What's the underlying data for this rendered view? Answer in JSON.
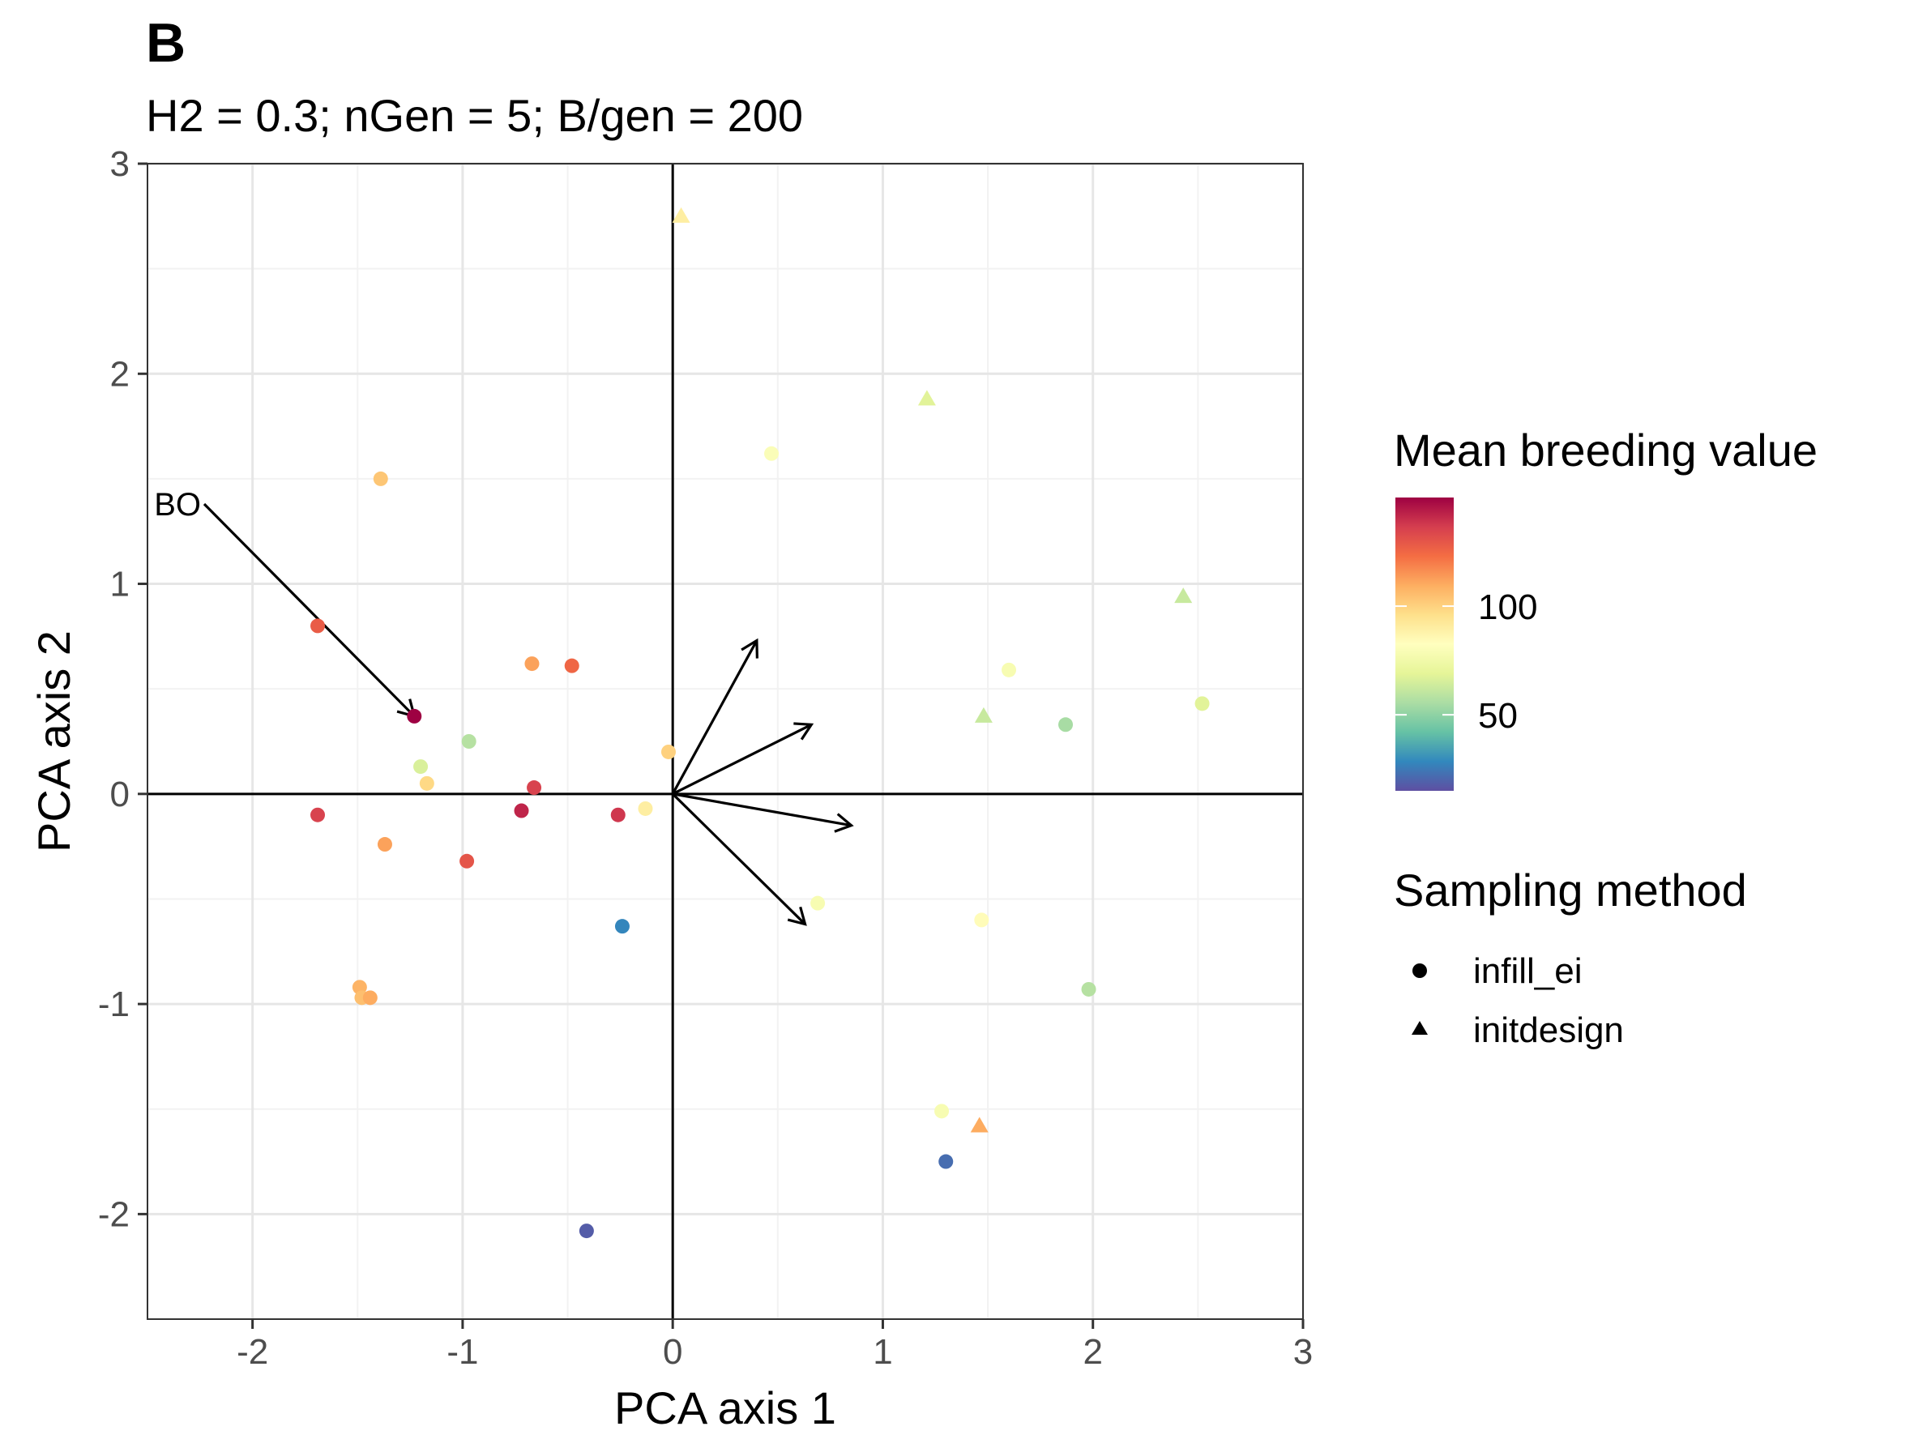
{
  "panel_label": "B",
  "subtitle": "H2 = 0.3; nGen = 5; B/gen = 200",
  "chart_data": {
    "type": "scatter",
    "xlabel": "PCA axis 1",
    "ylabel": "PCA axis 2",
    "xlim": [
      -2.5,
      3
    ],
    "ylim": [
      -2.5,
      3
    ],
    "x_ticks": [
      {
        "value": -2,
        "label": "-2"
      },
      {
        "value": -1,
        "label": "-1"
      },
      {
        "value": 0,
        "label": "0"
      },
      {
        "value": 1,
        "label": "1"
      },
      {
        "value": 2,
        "label": "2"
      },
      {
        "value": 3,
        "label": "3"
      }
    ],
    "y_ticks": [
      {
        "value": -2,
        "label": "-2"
      },
      {
        "value": -1,
        "label": "-1"
      },
      {
        "value": 0,
        "label": "0"
      },
      {
        "value": 1,
        "label": "1"
      },
      {
        "value": 2,
        "label": "2"
      },
      {
        "value": 3,
        "label": "3"
      }
    ],
    "grid": true,
    "reference_lines": {
      "x": 0,
      "y": 0
    },
    "points": [
      {
        "x": 0.04,
        "y": 2.75,
        "value": 90,
        "method": "initdesign"
      },
      {
        "x": 1.21,
        "y": 1.88,
        "value": 68,
        "method": "initdesign"
      },
      {
        "x": 2.43,
        "y": 0.94,
        "value": 62,
        "method": "initdesign"
      },
      {
        "x": 1.48,
        "y": 0.37,
        "value": 62,
        "method": "initdesign"
      },
      {
        "x": 1.46,
        "y": -1.58,
        "value": 110,
        "method": "initdesign"
      },
      {
        "x": -1.39,
        "y": 1.5,
        "value": 103,
        "method": "infill_ei"
      },
      {
        "x": 0.47,
        "y": 1.62,
        "value": 80,
        "method": "infill_ei"
      },
      {
        "x": -1.69,
        "y": 0.8,
        "value": 128,
        "method": "infill_ei"
      },
      {
        "x": -0.67,
        "y": 0.62,
        "value": 112,
        "method": "infill_ei"
      },
      {
        "x": -0.48,
        "y": 0.61,
        "value": 125,
        "method": "infill_ei"
      },
      {
        "x": -1.23,
        "y": 0.37,
        "value": 150,
        "method": "infill_ei"
      },
      {
        "x": -0.97,
        "y": 0.25,
        "value": 58,
        "method": "infill_ei"
      },
      {
        "x": -1.2,
        "y": 0.13,
        "value": 66,
        "method": "infill_ei"
      },
      {
        "x": -1.17,
        "y": 0.05,
        "value": 98,
        "method": "infill_ei"
      },
      {
        "x": -0.66,
        "y": 0.03,
        "value": 135,
        "method": "infill_ei"
      },
      {
        "x": -0.02,
        "y": 0.2,
        "value": 100,
        "method": "infill_ei"
      },
      {
        "x": -1.69,
        "y": -0.1,
        "value": 135,
        "method": "infill_ei"
      },
      {
        "x": -0.72,
        "y": -0.08,
        "value": 142,
        "method": "infill_ei"
      },
      {
        "x": -0.26,
        "y": -0.1,
        "value": 138,
        "method": "infill_ei"
      },
      {
        "x": -0.13,
        "y": -0.07,
        "value": 90,
        "method": "infill_ei"
      },
      {
        "x": -1.37,
        "y": -0.24,
        "value": 112,
        "method": "infill_ei"
      },
      {
        "x": -0.98,
        "y": -0.32,
        "value": 130,
        "method": "infill_ei"
      },
      {
        "x": -0.24,
        "y": -0.63,
        "value": 28,
        "method": "infill_ei"
      },
      {
        "x": -1.49,
        "y": -0.92,
        "value": 108,
        "method": "infill_ei"
      },
      {
        "x": -1.48,
        "y": -0.97,
        "value": 105,
        "method": "infill_ei"
      },
      {
        "x": -1.44,
        "y": -0.97,
        "value": 110,
        "method": "infill_ei"
      },
      {
        "x": -0.41,
        "y": -2.08,
        "value": 18,
        "method": "infill_ei"
      },
      {
        "x": 1.6,
        "y": 0.59,
        "value": 78,
        "method": "infill_ei"
      },
      {
        "x": 1.87,
        "y": 0.33,
        "value": 55,
        "method": "infill_ei"
      },
      {
        "x": 2.52,
        "y": 0.43,
        "value": 68,
        "method": "infill_ei"
      },
      {
        "x": 0.69,
        "y": -0.52,
        "value": 78,
        "method": "infill_ei"
      },
      {
        "x": 1.47,
        "y": -0.6,
        "value": 84,
        "method": "infill_ei"
      },
      {
        "x": 1.98,
        "y": -0.93,
        "value": 58,
        "method": "infill_ei"
      },
      {
        "x": 1.28,
        "y": -1.51,
        "value": 78,
        "method": "infill_ei"
      },
      {
        "x": 1.3,
        "y": -1.75,
        "value": 22,
        "method": "infill_ei"
      }
    ],
    "arrows": [
      {
        "x0": -2.23,
        "y0": 1.38,
        "x1": -1.23,
        "y1": 0.37,
        "label": "BO"
      },
      {
        "x0": 0,
        "y0": 0,
        "x1": 0.4,
        "y1": 0.73,
        "label": ""
      },
      {
        "x0": 0,
        "y0": 0,
        "x1": 0.66,
        "y1": 0.33,
        "label": ""
      },
      {
        "x0": 0,
        "y0": 0,
        "x1": 0.85,
        "y1": -0.15,
        "label": ""
      },
      {
        "x0": 0,
        "y0": 0,
        "x1": 0.63,
        "y1": -0.62,
        "label": ""
      }
    ],
    "legend": {
      "position": "right",
      "colorbar": {
        "title": "Mean breeding value",
        "min": 15,
        "max": 150,
        "palette": [
          "#5E4FA2",
          "#3288BD",
          "#66C2A5",
          "#ABDDA4",
          "#E6F598",
          "#FFFFBF",
          "#FEE08B",
          "#FDAE61",
          "#F46D43",
          "#D53E4F",
          "#9E0142"
        ],
        "ticks": [
          {
            "value": 50,
            "label": "50"
          },
          {
            "value": 100,
            "label": "100"
          }
        ]
      },
      "shape": {
        "title": "Sampling method",
        "items": [
          {
            "label": "infill_ei",
            "shape": "circle"
          },
          {
            "label": "initdesign",
            "shape": "triangle"
          }
        ]
      }
    }
  }
}
